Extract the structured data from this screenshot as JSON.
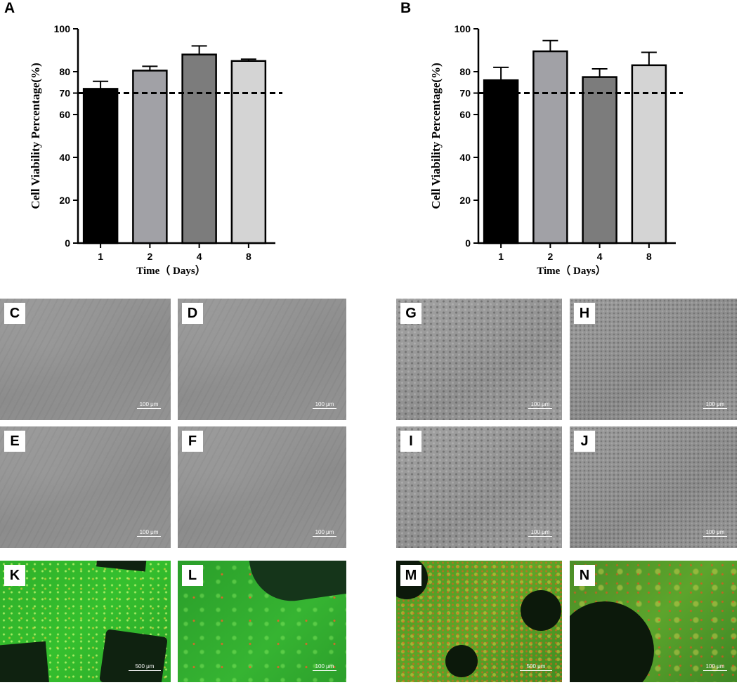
{
  "panels": {
    "A": "A",
    "B": "B",
    "C": "C",
    "D": "D",
    "E": "E",
    "F": "F",
    "G": "G",
    "H": "H",
    "I": "I",
    "J": "J",
    "K": "K",
    "L": "L",
    "M": "M",
    "N": "N"
  },
  "scale_bars": {
    "C": "100 μm",
    "D": "100 μm",
    "E": "100 μm",
    "F": "100 μm",
    "G": "100 μm",
    "H": "100 μm",
    "I": "100 μm",
    "J": "100 μm",
    "K": "500 μm",
    "L": "100 μm",
    "M": "500 μm",
    "N": "100 μm"
  },
  "chart_data": [
    {
      "panel": "A",
      "type": "bar",
      "categories": [
        "1",
        "2",
        "4",
        "8"
      ],
      "values": [
        72,
        80.5,
        88,
        85
      ],
      "errors": [
        3.5,
        2,
        4,
        0.8
      ],
      "colors": [
        "#000000",
        "#a1a1a6",
        "#7c7c7c",
        "#d4d4d4"
      ],
      "xlabel": "Time（ Days）",
      "ylabel": "Cell Viability Percentage(%)",
      "ylim": [
        0,
        100
      ],
      "yticks": [
        0,
        20,
        40,
        60,
        70,
        80,
        100
      ],
      "reference_line": 70
    },
    {
      "panel": "B",
      "type": "bar",
      "categories": [
        "1",
        "2",
        "4",
        "8"
      ],
      "values": [
        76,
        89.5,
        77.5,
        83
      ],
      "errors": [
        6,
        5,
        3.8,
        6
      ],
      "colors": [
        "#000000",
        "#a1a1a6",
        "#7c7c7c",
        "#d4d4d4"
      ],
      "xlabel": "Time（ Days）",
      "ylabel": "Cell Viability Percentage(%)",
      "ylim": [
        0,
        100
      ],
      "yticks": [
        0,
        20,
        40,
        60,
        70,
        80,
        100
      ],
      "reference_line": 70
    }
  ]
}
